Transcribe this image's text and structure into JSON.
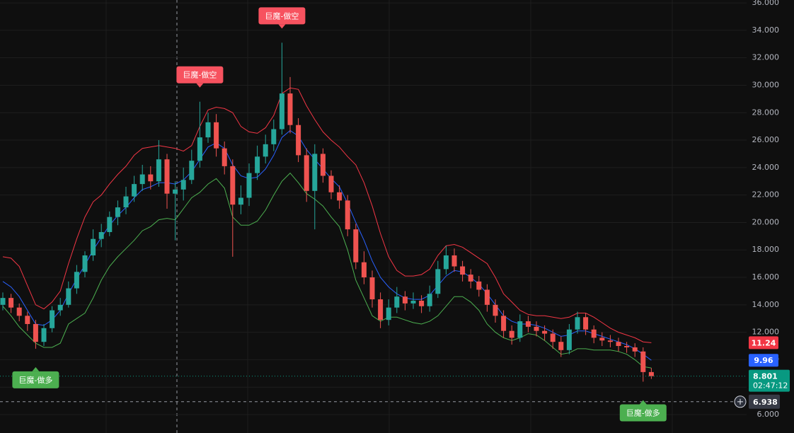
{
  "chart_data": {
    "type": "candlestick",
    "up_color": "#26a69a",
    "down_color": "#ef5350",
    "candles": [
      [
        14.0,
        14.9,
        13.6,
        14.5
      ],
      [
        14.5,
        14.8,
        13.4,
        13.8
      ],
      [
        13.8,
        14.1,
        12.8,
        13.2
      ],
      [
        13.2,
        13.5,
        12.1,
        12.6
      ],
      [
        12.6,
        12.9,
        10.8,
        11.3
      ],
      [
        11.3,
        12.6,
        11.0,
        12.3
      ],
      [
        12.3,
        13.9,
        12.0,
        13.6
      ],
      [
        13.6,
        14.5,
        13.2,
        14.0
      ],
      [
        14.0,
        15.7,
        13.8,
        15.2
      ],
      [
        15.2,
        16.9,
        14.8,
        16.4
      ],
      [
        16.4,
        17.9,
        16.0,
        17.6
      ],
      [
        17.6,
        19.5,
        17.2,
        18.8
      ],
      [
        18.8,
        19.9,
        18.2,
        19.3
      ],
      [
        19.3,
        20.8,
        19.0,
        20.4
      ],
      [
        20.4,
        21.6,
        19.8,
        21.1
      ],
      [
        21.1,
        22.6,
        20.6,
        21.9
      ],
      [
        21.9,
        23.4,
        21.5,
        22.8
      ],
      [
        22.8,
        24.2,
        22.3,
        23.5
      ],
      [
        23.5,
        24.1,
        22.4,
        23.0
      ],
      [
        23.0,
        26.0,
        22.6,
        24.6
      ],
      [
        24.6,
        25.0,
        21.0,
        22.1
      ],
      [
        22.1,
        23.0,
        18.7,
        22.4
      ],
      [
        22.4,
        24.0,
        21.6,
        23.1
      ],
      [
        23.1,
        25.3,
        22.8,
        24.5
      ],
      [
        24.5,
        28.8,
        24.0,
        26.2
      ],
      [
        26.2,
        28.0,
        25.8,
        27.3
      ],
      [
        27.3,
        27.9,
        24.8,
        25.4
      ],
      [
        25.4,
        25.9,
        23.5,
        24.1
      ],
      [
        24.1,
        24.6,
        17.5,
        21.3
      ],
      [
        21.3,
        22.7,
        20.6,
        21.8
      ],
      [
        21.8,
        24.3,
        21.2,
        23.6
      ],
      [
        23.6,
        25.6,
        23.1,
        24.8
      ],
      [
        24.8,
        26.4,
        24.3,
        25.7
      ],
      [
        25.7,
        27.5,
        25.2,
        26.8
      ],
      [
        26.8,
        33.1,
        26.4,
        29.4
      ],
      [
        29.4,
        30.6,
        26.5,
        27.1
      ],
      [
        27.1,
        27.6,
        24.4,
        24.9
      ],
      [
        24.9,
        25.4,
        21.5,
        22.3
      ],
      [
        22.3,
        25.7,
        19.5,
        25.0
      ],
      [
        25.0,
        25.4,
        22.9,
        23.4
      ],
      [
        23.4,
        23.8,
        21.7,
        22.2
      ],
      [
        22.2,
        22.7,
        21.0,
        21.6
      ],
      [
        21.6,
        22.0,
        19.0,
        19.5
      ],
      [
        19.5,
        19.9,
        16.6,
        17.1
      ],
      [
        17.1,
        17.9,
        15.5,
        16.0
      ],
      [
        16.0,
        16.5,
        13.8,
        14.4
      ],
      [
        14.4,
        14.9,
        12.3,
        12.9
      ],
      [
        12.9,
        14.4,
        12.5,
        13.8
      ],
      [
        13.8,
        15.3,
        13.4,
        14.6
      ],
      [
        14.6,
        15.0,
        13.6,
        14.1
      ],
      [
        14.1,
        14.9,
        13.7,
        14.3
      ],
      [
        14.3,
        14.7,
        13.4,
        13.9
      ],
      [
        13.9,
        15.4,
        13.5,
        14.8
      ],
      [
        14.8,
        17.2,
        14.5,
        16.6
      ],
      [
        16.6,
        18.3,
        16.2,
        17.6
      ],
      [
        17.6,
        18.1,
        16.4,
        16.8
      ],
      [
        16.8,
        17.2,
        15.7,
        16.2
      ],
      [
        16.2,
        16.6,
        15.2,
        15.7
      ],
      [
        15.7,
        16.1,
        14.6,
        15.1
      ],
      [
        15.1,
        15.5,
        13.5,
        14.0
      ],
      [
        14.0,
        14.4,
        12.7,
        13.2
      ],
      [
        13.2,
        13.6,
        11.6,
        12.1
      ],
      [
        12.1,
        12.5,
        11.1,
        11.6
      ],
      [
        11.6,
        13.3,
        11.3,
        12.8
      ],
      [
        12.8,
        13.2,
        12.0,
        12.4
      ],
      [
        12.4,
        12.8,
        11.7,
        12.1
      ],
      [
        12.1,
        12.5,
        11.4,
        11.9
      ],
      [
        11.9,
        12.2,
        10.8,
        11.3
      ],
      [
        11.3,
        11.7,
        10.2,
        10.7
      ],
      [
        10.7,
        12.6,
        10.4,
        12.2
      ],
      [
        12.2,
        13.5,
        11.9,
        13.1
      ],
      [
        13.1,
        13.4,
        11.8,
        12.2
      ],
      [
        12.2,
        12.5,
        11.2,
        11.6
      ],
      [
        11.6,
        12.0,
        11.0,
        11.4
      ],
      [
        11.4,
        11.8,
        10.9,
        11.3
      ],
      [
        11.3,
        11.6,
        10.6,
        11.0
      ],
      [
        11.0,
        11.3,
        10.5,
        10.9
      ],
      [
        10.9,
        11.2,
        10.2,
        10.6
      ],
      [
        10.6,
        10.9,
        8.4,
        9.1
      ],
      [
        9.1,
        9.4,
        8.6,
        8.801
      ]
    ],
    "upper": [
      17.5,
      17.4,
      16.8,
      15.4,
      14.0,
      13.7,
      14.2,
      15.0,
      17.0,
      18.8,
      20.4,
      21.5,
      22.0,
      22.8,
      23.5,
      24.1,
      24.9,
      25.4,
      25.5,
      25.6,
      25.5,
      25.4,
      25.2,
      25.6,
      27.0,
      28.2,
      28.4,
      28.3,
      28.0,
      27.0,
      26.6,
      26.5,
      26.9,
      27.8,
      29.4,
      29.8,
      29.7,
      28.5,
      27.5,
      26.6,
      26.0,
      25.5,
      24.8,
      24.2,
      22.9,
      21.2,
      19.2,
      17.5,
      16.5,
      16.1,
      16.1,
      16.2,
      16.6,
      17.6,
      18.3,
      18.4,
      18.2,
      17.8,
      17.4,
      17.0,
      16.0,
      14.8,
      14.2,
      13.6,
      13.3,
      13.2,
      13.2,
      13.1,
      13.0,
      13.1,
      13.4,
      13.4,
      13.1,
      12.7,
      12.3,
      12.0,
      11.8,
      11.6,
      11.3,
      11.24
    ],
    "middle": [
      15.7,
      15.3,
      14.6,
      13.6,
      12.6,
      12.5,
      12.9,
      13.6,
      14.8,
      15.9,
      16.9,
      18.0,
      18.9,
      19.8,
      20.5,
      21.1,
      21.8,
      22.4,
      22.6,
      22.9,
      22.9,
      22.8,
      23.1,
      23.7,
      24.6,
      25.5,
      25.8,
      25.4,
      24.2,
      23.4,
      23.2,
      23.3,
      23.9,
      24.9,
      26.2,
      26.7,
      26.3,
      25.3,
      24.6,
      23.9,
      23.2,
      22.6,
      21.4,
      20.0,
      18.7,
      17.2,
      16.0,
      15.3,
      14.8,
      14.5,
      14.4,
      14.4,
      14.7,
      15.4,
      16.1,
      16.5,
      16.4,
      16.0,
      15.5,
      14.8,
      14.0,
      13.2,
      12.8,
      12.6,
      12.6,
      12.5,
      12.3,
      12.0,
      11.7,
      11.8,
      12.1,
      12.1,
      11.9,
      11.7,
      11.5,
      11.3,
      11.1,
      10.8,
      10.4,
      9.96
    ],
    "lower": [
      13.9,
      13.2,
      12.4,
      11.8,
      11.2,
      10.9,
      10.9,
      11.2,
      12.6,
      13.0,
      13.4,
      14.5,
      15.8,
      16.8,
      17.5,
      18.1,
      18.7,
      19.4,
      19.7,
      20.2,
      20.3,
      20.2,
      21.0,
      21.8,
      22.2,
      22.8,
      23.2,
      22.5,
      20.4,
      19.8,
      19.8,
      20.1,
      20.9,
      22.0,
      23.0,
      23.6,
      22.9,
      22.1,
      21.7,
      21.2,
      20.4,
      19.7,
      18.0,
      15.8,
      14.5,
      13.2,
      12.8,
      13.1,
      13.1,
      12.9,
      12.7,
      12.6,
      12.8,
      13.2,
      13.9,
      14.6,
      14.6,
      14.2,
      13.6,
      12.6,
      12.0,
      11.6,
      11.4,
      11.6,
      11.9,
      11.8,
      11.4,
      10.9,
      10.4,
      10.5,
      10.8,
      10.8,
      10.7,
      10.7,
      10.7,
      10.6,
      10.4,
      10.0,
      9.5,
      9.4
    ],
    "band_colors": {
      "upper": "#f23645",
      "middle": "#2962ff",
      "lower": "#4caf50"
    },
    "ylim": [
      4.66,
      36.21
    ],
    "yticks": [
      {
        "value": 6,
        "label": "6.000"
      },
      {
        "value": 8,
        "label": "8.000"
      },
      {
        "value": 10,
        "label": "10.000"
      },
      {
        "value": 12,
        "label": "12.000"
      },
      {
        "value": 14,
        "label": "14.000"
      },
      {
        "value": 16,
        "label": "16.000"
      },
      {
        "value": 18,
        "label": "18.000"
      },
      {
        "value": 20,
        "label": "20.000"
      },
      {
        "value": 22,
        "label": "22.000"
      },
      {
        "value": 24,
        "label": "24.000"
      },
      {
        "value": 26,
        "label": "26.000"
      },
      {
        "value": 28,
        "label": "28.000"
      },
      {
        "value": 30,
        "label": "30.000"
      },
      {
        "value": 32,
        "label": "32.000"
      },
      {
        "value": 34,
        "label": "34.000"
      },
      {
        "value": 36,
        "label": "36.000"
      }
    ],
    "grid": true,
    "signals": [
      {
        "label": "巨魔-做多",
        "candle": 4,
        "side": "long",
        "color": "#4caf50"
      },
      {
        "label": "巨魔-做空",
        "candle": 24,
        "side": "short",
        "color": "#f7525f"
      },
      {
        "label": "巨魔-做空",
        "candle": 34,
        "side": "short",
        "color": "#f7525f"
      },
      {
        "label": "巨魔-做多",
        "candle": 78,
        "side": "long",
        "color": "#4caf50"
      }
    ],
    "price_tags": [
      {
        "value": 11.24,
        "color": "#f23645"
      },
      {
        "value": 9.96,
        "color": "#2962ff"
      }
    ],
    "last_price": {
      "value": 8.801,
      "countdown": "02:47:12",
      "color": "#089981"
    },
    "crosshair": {
      "value": 6.938,
      "color": "#363a45"
    }
  }
}
